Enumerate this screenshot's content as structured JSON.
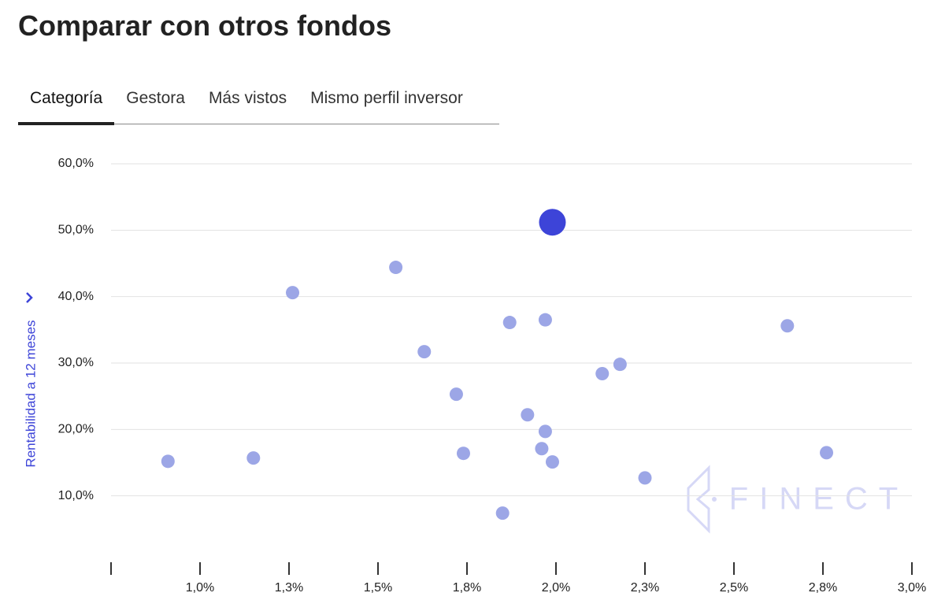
{
  "header": {
    "title": "Comparar con otros fondos"
  },
  "tabs": [
    "Categoría",
    "Gestora",
    "Más vistos",
    "Mismo perfil inversor"
  ],
  "chart_data": {
    "type": "scatter",
    "y_label": "Rentabilidad a 12 meses",
    "watermark": "FINECT",
    "xlim": [
      0.75,
      3.0
    ],
    "xticks": [
      {
        "value": 1.0,
        "label": "1,0%"
      },
      {
        "value": 1.25,
        "label": "1,3%"
      },
      {
        "value": 1.5,
        "label": "1,5%"
      },
      {
        "value": 1.75,
        "label": "1,8%"
      },
      {
        "value": 2.0,
        "label": "2,0%"
      },
      {
        "value": 2.25,
        "label": "2,3%"
      },
      {
        "value": 2.5,
        "label": "2,5%"
      },
      {
        "value": 2.75,
        "label": "2,8%"
      },
      {
        "value": 3.0,
        "label": "3,0%"
      }
    ],
    "ylim": [
      0,
      60
    ],
    "yticks": [
      {
        "value": 10,
        "label": "10,0%"
      },
      {
        "value": 20,
        "label": "20,0%"
      },
      {
        "value": 30,
        "label": "30,0%"
      },
      {
        "value": 40,
        "label": "40,0%"
      },
      {
        "value": 50,
        "label": "50,0%"
      },
      {
        "value": 60,
        "label": "60,0%"
      }
    ],
    "grid": true,
    "series": [
      {
        "color": "#9ca6e6",
        "x": [
          0.91,
          1.15,
          1.26,
          1.55,
          1.63,
          1.72,
          1.74,
          1.85,
          1.87,
          1.92,
          1.97,
          1.97,
          1.96,
          1.99,
          2.13,
          2.18,
          2.25,
          2.65,
          2.76
        ],
        "y": [
          15.2,
          15.7,
          40.6,
          44.4,
          31.7,
          25.3,
          16.4,
          7.4,
          36.1,
          22.2,
          36.5,
          19.7,
          17.1,
          15.1,
          28.4,
          29.8,
          12.7,
          35.6,
          16.5
        ]
      },
      {
        "color": "#3d44d8",
        "x": [
          1.99
        ],
        "y": [
          51.2
        ]
      }
    ]
  }
}
